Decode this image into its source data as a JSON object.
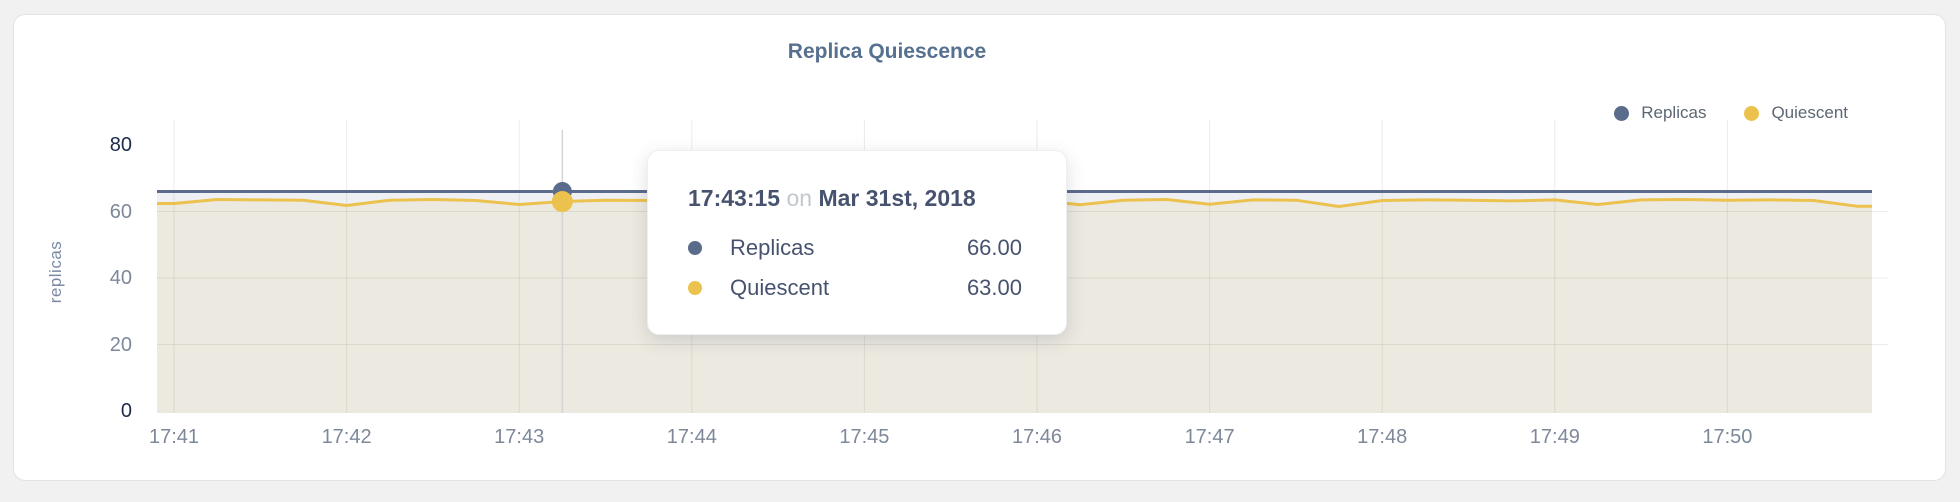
{
  "page": {
    "background": "#f1f1f2"
  },
  "card": {
    "background": "#ffffff",
    "border_color": "#e3e3e3"
  },
  "header": {
    "title": "Replica Quiescence",
    "title_color": "#567090"
  },
  "axes": {
    "y_title": "replicas",
    "tick_color": "#7e8899",
    "emphasized_tick_color": "#1c2b4a"
  },
  "legend": {
    "items": [
      {
        "label": "Replicas",
        "color": "#5b6b8c"
      },
      {
        "label": "Quiescent",
        "color": "#ecc24e"
      }
    ]
  },
  "tooltip": {
    "time": "17:43:15",
    "connector": "on",
    "date": "Mar 31st, 2018",
    "rows": [
      {
        "series": "Replicas",
        "color": "#5b6b8c",
        "value": "66.00"
      },
      {
        "series": "Quiescent",
        "color": "#ecc24e",
        "value": "63.00"
      }
    ]
  },
  "chart_data": {
    "type": "area",
    "title": "Replica Quiescence",
    "xlabel": "",
    "ylabel": "replicas",
    "ylim": [
      0,
      80
    ],
    "yticks": [
      0,
      20,
      40,
      60,
      80
    ],
    "emphasized_yticks": [
      0,
      80
    ],
    "xticks": [
      "17:41",
      "17:42",
      "17:43",
      "17:44",
      "17:45",
      "17:46",
      "17:47",
      "17:48",
      "17:49",
      "17:50"
    ],
    "grid": true,
    "legend_position": "top-right",
    "crosshair_color": "#d4d4d4",
    "x_times": [
      "17:41:00",
      "17:41:15",
      "17:41:30",
      "17:41:45",
      "17:42:00",
      "17:42:15",
      "17:42:30",
      "17:42:45",
      "17:43:00",
      "17:43:15",
      "17:43:30",
      "17:43:45",
      "17:44:00",
      "17:44:15",
      "17:44:30",
      "17:44:45",
      "17:45:00",
      "17:45:15",
      "17:45:30",
      "17:45:45",
      "17:46:00",
      "17:46:15",
      "17:46:30",
      "17:46:45",
      "17:47:00",
      "17:47:15",
      "17:47:30",
      "17:47:45",
      "17:48:00",
      "17:48:15",
      "17:48:30",
      "17:48:45",
      "17:49:00",
      "17:49:15",
      "17:49:30",
      "17:49:45",
      "17:50:00",
      "17:50:15",
      "17:50:30",
      "17:50:45"
    ],
    "series": [
      {
        "name": "Replicas",
        "color": "#5b6b8c",
        "fill": "#eef0f4",
        "values": [
          66,
          66,
          66,
          66,
          66,
          66,
          66,
          66,
          66,
          66,
          66,
          66,
          66,
          66,
          66,
          66,
          66,
          66,
          66,
          66,
          66,
          66,
          66,
          66,
          66,
          66,
          66,
          66,
          66,
          66,
          66,
          66,
          66,
          66,
          66,
          66,
          66,
          66,
          66,
          66
        ]
      },
      {
        "name": "Quiescent",
        "color": "#ecc24e",
        "fill": "#ece9e0",
        "values": [
          62.4,
          63.6,
          63.5,
          63.4,
          61.8,
          63.4,
          63.6,
          63.3,
          62.1,
          63.0,
          63.4,
          63.3,
          63.5,
          63.2,
          63.6,
          63.4,
          61.9,
          63.5,
          63.3,
          63.5,
          63.4,
          62.0,
          63.4,
          63.6,
          62.2,
          63.5,
          63.4,
          61.5,
          63.3,
          63.5,
          63.4,
          63.2,
          63.5,
          62.1,
          63.5,
          63.6,
          63.4,
          63.5,
          63.3,
          61.6
        ]
      }
    ],
    "hover": {
      "time": "17:43:15",
      "values": {
        "Replicas": 66.0,
        "Quiescent": 63.0
      }
    }
  }
}
